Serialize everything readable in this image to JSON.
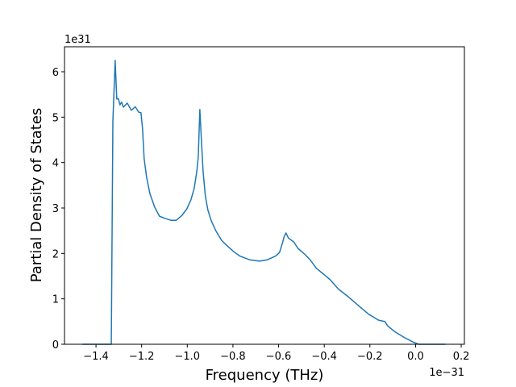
{
  "chart_data": {
    "type": "line",
    "xlabel": "Frequency (THz)",
    "ylabel": "Partial Density of States",
    "x_offset_label": "1e−31",
    "y_offset_label": "1e31",
    "color": "#1f77b4",
    "x": [
      -1.46,
      -1.333,
      -1.326,
      -1.316,
      -1.309,
      -1.302,
      -1.295,
      -1.288,
      -1.28,
      -1.263,
      -1.245,
      -1.228,
      -1.213,
      -1.203,
      -1.196,
      -1.189,
      -1.178,
      -1.164,
      -1.143,
      -1.122,
      -1.097,
      -1.072,
      -1.048,
      -1.023,
      -1.002,
      -0.984,
      -0.97,
      -0.959,
      -0.952,
      -0.945,
      -0.938,
      -0.931,
      -0.921,
      -0.91,
      -0.896,
      -0.875,
      -0.85,
      -0.832,
      -0.797,
      -0.769,
      -0.727,
      -0.684,
      -0.649,
      -0.614,
      -0.596,
      -0.582,
      -0.575,
      -0.568,
      -0.557,
      -0.533,
      -0.515,
      -0.487,
      -0.462,
      -0.434,
      -0.402,
      -0.374,
      -0.339,
      -0.296,
      -0.25,
      -0.205,
      -0.162,
      -0.134,
      -0.123,
      -0.092,
      -0.046,
      -0.007,
      0.014,
      0.13
    ],
    "values": [
      0,
      0,
      4.92,
      6.25,
      5.4,
      5.41,
      5.27,
      5.33,
      5.22,
      5.31,
      5.15,
      5.23,
      5.11,
      5.1,
      4.74,
      4.08,
      3.67,
      3.32,
      3.02,
      2.82,
      2.77,
      2.73,
      2.73,
      2.84,
      2.98,
      3.18,
      3.43,
      3.78,
      4.12,
      5.17,
      4.47,
      3.82,
      3.27,
      2.96,
      2.73,
      2.5,
      2.29,
      2.2,
      2.04,
      1.94,
      1.86,
      1.83,
      1.86,
      1.94,
      2.02,
      2.25,
      2.38,
      2.45,
      2.34,
      2.25,
      2.11,
      1.99,
      1.86,
      1.67,
      1.54,
      1.42,
      1.22,
      1.05,
      0.85,
      0.66,
      0.53,
      0.5,
      0.41,
      0.28,
      0.14,
      0.04,
      0,
      0
    ],
    "xlim": [
      -1.538,
      0.214
    ],
    "ylim": [
      0,
      6.55
    ],
    "xticks": [
      {
        "value": -1.4,
        "label": "−1.4"
      },
      {
        "value": -1.2,
        "label": "−1.2"
      },
      {
        "value": -1.0,
        "label": "−1.0"
      },
      {
        "value": -0.8,
        "label": "−0.8"
      },
      {
        "value": -0.6,
        "label": "−0.6"
      },
      {
        "value": -0.4,
        "label": "−0.4"
      },
      {
        "value": -0.2,
        "label": "−0.2"
      },
      {
        "value": 0,
        "label": "0.0"
      },
      0.2
    ],
    "yticks": [
      0,
      1,
      2,
      3,
      4,
      5,
      6
    ]
  }
}
